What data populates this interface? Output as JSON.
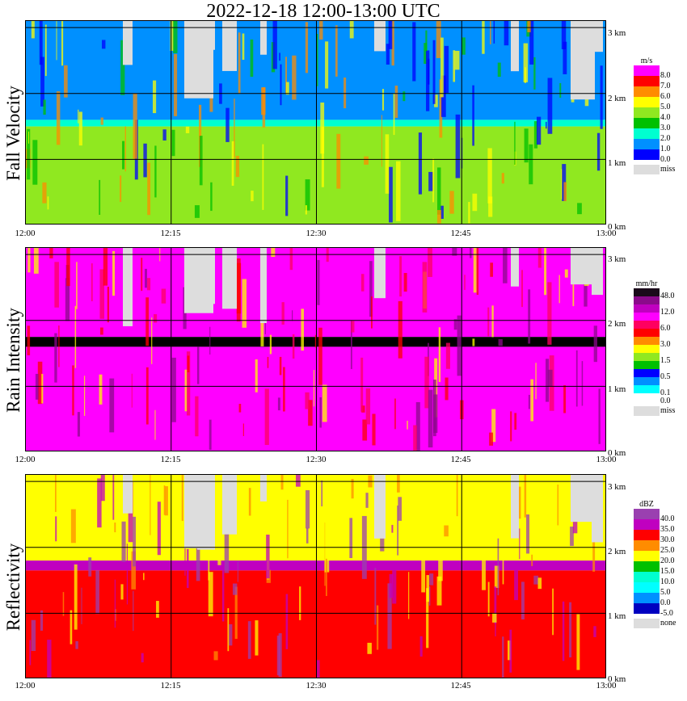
{
  "title": "2022-12-18   12:00-13:00 UTC",
  "x_ticks": [
    "12:00",
    "12:15",
    "12:30",
    "12:45",
    "13:00"
  ],
  "km_ticks": [
    "0 km",
    "1 km",
    "2 km",
    "3 km"
  ],
  "chart_data": [
    {
      "type": "heatmap",
      "title": "Fall Velocity",
      "unit": "m/s",
      "x_range": [
        "12:00",
        "13:00"
      ],
      "y_range_km": [
        0,
        3.1
      ],
      "legend": [
        {
          "label": "8.0",
          "color": "#ff00ff"
        },
        {
          "label": "7.0",
          "color": "#ff0000"
        },
        {
          "label": "6.0",
          "color": "#ff8c00"
        },
        {
          "label": "5.0",
          "color": "#ffff00"
        },
        {
          "label": "4.0",
          "color": "#90e820"
        },
        {
          "label": "3.0",
          "color": "#00c000"
        },
        {
          "label": "2.0",
          "color": "#00ffd0"
        },
        {
          "label": "1.0",
          "color": "#0090ff"
        },
        {
          "label": "0.0",
          "color": "#0000ff"
        }
      ],
      "missing_label": "miss",
      "layers": [
        {
          "from_km": 1.6,
          "to_km": 3.1,
          "color": "#0090ff"
        },
        {
          "from_km": 1.5,
          "to_km": 1.6,
          "color": "#00ffd0"
        },
        {
          "from_km": 0,
          "to_km": 1.5,
          "color": "#90e820"
        }
      ]
    },
    {
      "type": "heatmap",
      "title": "Rain Intensity",
      "unit": "mm/hr",
      "x_range": [
        "12:00",
        "13:00"
      ],
      "y_range_km": [
        0,
        3.1
      ],
      "legend": [
        {
          "label": "48.0",
          "color": "#1a0a1a"
        },
        {
          "label": "",
          "color": "#8b0a8b"
        },
        {
          "label": "12.0",
          "color": "#c000c0"
        },
        {
          "label": "",
          "color": "#ff00ff"
        },
        {
          "label": "6.0",
          "color": "#ff0060"
        },
        {
          "label": "",
          "color": "#ff0000"
        },
        {
          "label": "3.0",
          "color": "#ff8c00"
        },
        {
          "label": "",
          "color": "#ffff00"
        },
        {
          "label": "1.5",
          "color": "#90e820"
        },
        {
          "label": "",
          "color": "#00c000"
        },
        {
          "label": "0.5",
          "color": "#0000ff"
        },
        {
          "label": "",
          "color": "#0090ff"
        },
        {
          "label": "0.1",
          "color": "#00ffff"
        },
        {
          "label": "0.0",
          "color": "#ffffff"
        }
      ],
      "missing_label": "miss",
      "layers": [
        {
          "from_km": 1.75,
          "to_km": 3.1,
          "color": "#ff00ff"
        },
        {
          "from_km": 1.6,
          "to_km": 1.75,
          "color": "#000000"
        },
        {
          "from_km": 0,
          "to_km": 1.6,
          "color": "#ff00ff"
        }
      ]
    },
    {
      "type": "heatmap",
      "title": "Reflectivity",
      "unit": "dBZ",
      "x_range": [
        "12:00",
        "13:00"
      ],
      "y_range_km": [
        0,
        3.1
      ],
      "legend": [
        {
          "label": "40.0",
          "color": "#9a40b0"
        },
        {
          "label": "35.0",
          "color": "#c000c0"
        },
        {
          "label": "30.0",
          "color": "#ff0000"
        },
        {
          "label": "25.0",
          "color": "#ff8c00"
        },
        {
          "label": "20.0",
          "color": "#ffff00"
        },
        {
          "label": "15.0",
          "color": "#00c000"
        },
        {
          "label": "10.0",
          "color": "#00ffd0"
        },
        {
          "label": "5.0",
          "color": "#00ffff"
        },
        {
          "label": "0.0",
          "color": "#0090ff"
        },
        {
          "label": "-5.0",
          "color": "#0000c0"
        }
      ],
      "missing_label": "none",
      "layers": [
        {
          "from_km": 1.8,
          "to_km": 3.1,
          "color": "#ffff00"
        },
        {
          "from_km": 1.65,
          "to_km": 1.8,
          "color": "#c000c0"
        },
        {
          "from_km": 0,
          "to_km": 1.65,
          "color": "#ff0000"
        }
      ]
    }
  ]
}
